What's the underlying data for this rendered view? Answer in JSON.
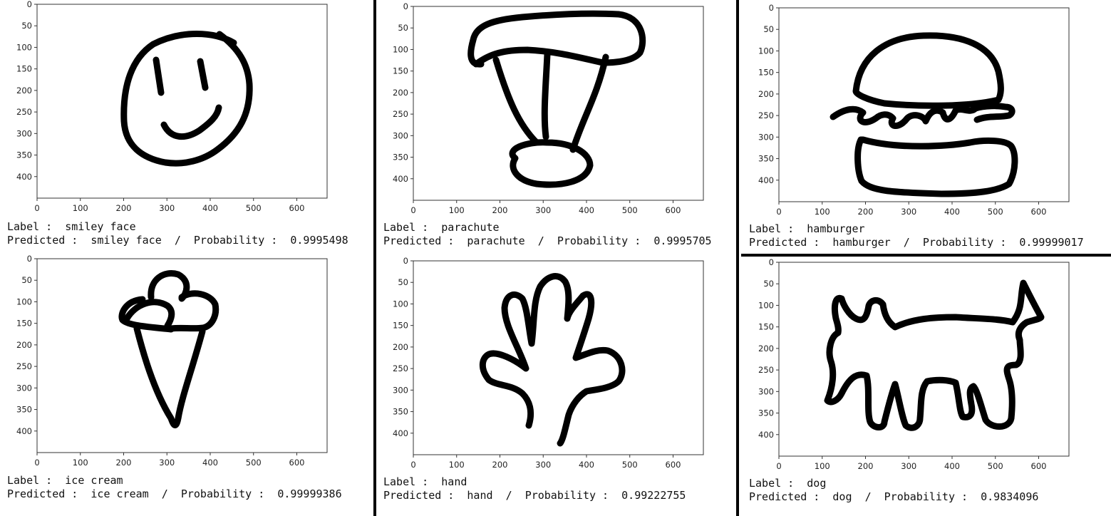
{
  "panels": [
    {
      "label_prefix": "Label :",
      "label": "smiley face",
      "predicted_prefix": "Predicted :",
      "predicted": "smiley face",
      "prob_prefix": "Probability :",
      "probability": "0.9995498",
      "drawing_icon": "smiley-face-drawing"
    },
    {
      "label_prefix": "Label :",
      "label": "parachute",
      "predicted_prefix": "Predicted :",
      "predicted": "parachute",
      "prob_prefix": "Probability :",
      "probability": "0.9995705",
      "drawing_icon": "parachute-drawing"
    },
    {
      "label_prefix": "Label :",
      "label": "hamburger",
      "predicted_prefix": "Predicted :",
      "predicted": "hamburger",
      "prob_prefix": "Probability :",
      "probability": "0.99999017",
      "drawing_icon": "hamburger-drawing"
    },
    {
      "label_prefix": "Label :",
      "label": "ice cream",
      "predicted_prefix": "Predicted :",
      "predicted": "ice cream",
      "prob_prefix": "Probability :",
      "probability": "0.99999386",
      "drawing_icon": "ice-cream-drawing"
    },
    {
      "label_prefix": "Label :",
      "label": "hand",
      "predicted_prefix": "Predicted :",
      "predicted": "hand",
      "prob_prefix": "Probability :",
      "probability": "0.99222755",
      "drawing_icon": "hand-drawing"
    },
    {
      "label_prefix": "Label :",
      "label": "dog",
      "predicted_prefix": "Predicted :",
      "predicted": "dog",
      "prob_prefix": "Probability :",
      "probability": "0.9834096",
      "drawing_icon": "dog-drawing"
    }
  ],
  "separator": "/",
  "axes": {
    "x_ticks": [
      "0",
      "100",
      "200",
      "300",
      "400",
      "500",
      "600"
    ],
    "y_ticks": [
      "0",
      "50",
      "100",
      "150",
      "200",
      "250",
      "300",
      "350",
      "400"
    ],
    "xlim": [
      0,
      670
    ],
    "ylim": [
      0,
      450
    ]
  }
}
